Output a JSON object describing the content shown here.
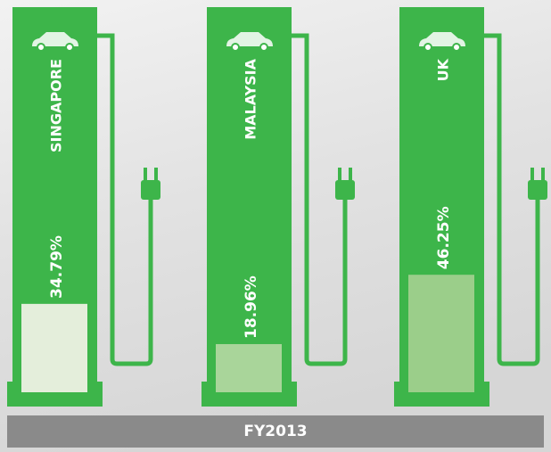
{
  "chart_data": {
    "type": "bar",
    "title": "FY2013",
    "categories": [
      "SINGAPORE",
      "MALAYSIA",
      "UK"
    ],
    "values": [
      34.79,
      18.96,
      46.25
    ],
    "value_labels": [
      "34.79%",
      "18.96%",
      "46.25%"
    ],
    "colors": [
      "#e4eedb",
      "#a9d59a",
      "#9bce8a"
    ],
    "column_color": "#3db54a"
  }
}
